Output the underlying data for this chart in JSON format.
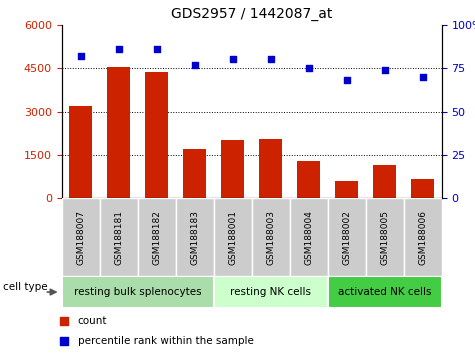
{
  "title": "GDS2957 / 1442087_at",
  "samples": [
    "GSM188007",
    "GSM188181",
    "GSM188182",
    "GSM188183",
    "GSM188001",
    "GSM188003",
    "GSM188004",
    "GSM188002",
    "GSM188005",
    "GSM188006"
  ],
  "counts": [
    3200,
    4550,
    4380,
    1700,
    2000,
    2050,
    1280,
    580,
    1150,
    680
  ],
  "percentiles": [
    82,
    86,
    86,
    77,
    80,
    80,
    75,
    68,
    74,
    70
  ],
  "bar_color": "#cc2200",
  "dot_color": "#0000cc",
  "ylim_left": [
    0,
    6000
  ],
  "ylim_right": [
    0,
    100
  ],
  "yticks_left": [
    0,
    1500,
    3000,
    4500,
    6000
  ],
  "yticks_right": [
    0,
    25,
    50,
    75,
    100
  ],
  "gridlines": [
    1500,
    3000,
    4500
  ],
  "cell_groups": [
    {
      "label": "resting bulk splenocytes",
      "start": 0,
      "end": 4,
      "color": "#aaddaa"
    },
    {
      "label": "resting NK cells",
      "start": 4,
      "end": 7,
      "color": "#ccffcc"
    },
    {
      "label": "activated NK cells",
      "start": 7,
      "end": 10,
      "color": "#44cc44"
    }
  ],
  "cell_type_label": "cell type",
  "legend_count_label": "count",
  "legend_percentile_label": "percentile rank within the sample",
  "tick_bg_color": "#cccccc",
  "fig_width": 4.75,
  "fig_height": 3.54,
  "dpi": 100
}
